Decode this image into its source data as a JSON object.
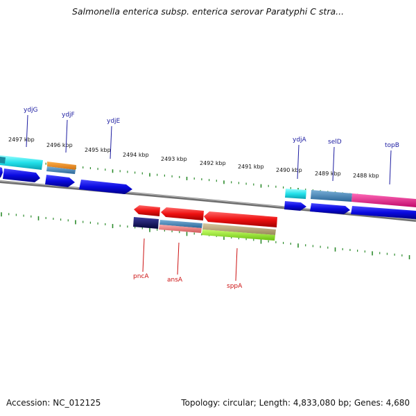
{
  "title": "Salmonella enterica subsp. enterica serovar Paratyphi C stra...",
  "footer": {
    "accession": "Accession: NC_012125",
    "stats": "Topology: circular; Length: 4,833,080 bp; Genes: 4,680"
  },
  "kbp_labels": [
    "2497 kbp",
    "2496 kbp",
    "2495 kbp",
    "2494 kbp",
    "2493 kbp",
    "2492 kbp",
    "2491 kbp",
    "2490 kbp",
    "2489 kbp",
    "2488 kbp"
  ],
  "top_genes": [
    {
      "name": "ydjG",
      "color": "#1a1aa0"
    },
    {
      "name": "ydjF",
      "color": "#1a1aa0"
    },
    {
      "name": "ydjE",
      "color": "#1a1aa0"
    },
    {
      "name": "ydjA",
      "color": "#1a1aa0"
    },
    {
      "name": "selD",
      "color": "#1a1aa0"
    },
    {
      "name": "topB",
      "color": "#1a1aa0"
    }
  ],
  "bottom_genes": [
    {
      "name": "pncA",
      "color": "#cc1111"
    },
    {
      "name": "ansA",
      "color": "#cc1111"
    },
    {
      "name": "sppA",
      "color": "#cc1111"
    }
  ],
  "colors": {
    "backbone": "#8a8a8a",
    "ticks": "#2a8a2a",
    "forward_cds": "#0a0ae0",
    "reverse_cds": "#ee1111",
    "cyan": "#22e0ea",
    "orange": "#ee8a1a",
    "steelblue": "#4a86b8",
    "magenta": "#ee1a8a",
    "navy": "#10106a",
    "salmon": "#ee7a7a",
    "khaki": "#b8a870",
    "lime": "#8ae01a"
  }
}
